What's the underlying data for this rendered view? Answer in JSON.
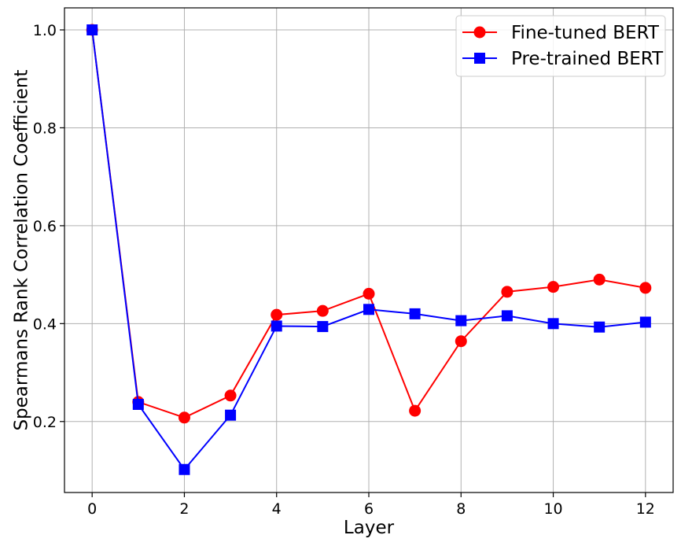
{
  "chart_data": {
    "type": "line",
    "title": "",
    "xlabel": "Layer",
    "ylabel": "Spearmans Rank Correlation Coefficient",
    "x": [
      0,
      1,
      2,
      3,
      4,
      5,
      6,
      7,
      8,
      9,
      10,
      11,
      12
    ],
    "xlim": [
      -0.6,
      12.6
    ],
    "ylim": [
      0.055,
      1.045
    ],
    "xticks": [
      0,
      2,
      4,
      6,
      8,
      10,
      12
    ],
    "yticks": [
      0.2,
      0.4,
      0.6,
      0.8,
      1.0
    ],
    "grid": true,
    "legend_position": "top-right",
    "series": [
      {
        "name": "Fine-tuned BERT",
        "color": "#ff0000",
        "marker": "circle",
        "values": [
          1.0,
          0.24,
          0.208,
          0.253,
          0.418,
          0.426,
          0.461,
          0.222,
          0.364,
          0.465,
          0.475,
          0.49,
          0.473
        ]
      },
      {
        "name": "Pre-trained BERT",
        "color": "#0000ff",
        "marker": "square",
        "values": [
          1.0,
          0.235,
          0.102,
          0.213,
          0.395,
          0.394,
          0.429,
          0.42,
          0.406,
          0.416,
          0.4,
          0.393,
          0.403
        ]
      }
    ]
  }
}
